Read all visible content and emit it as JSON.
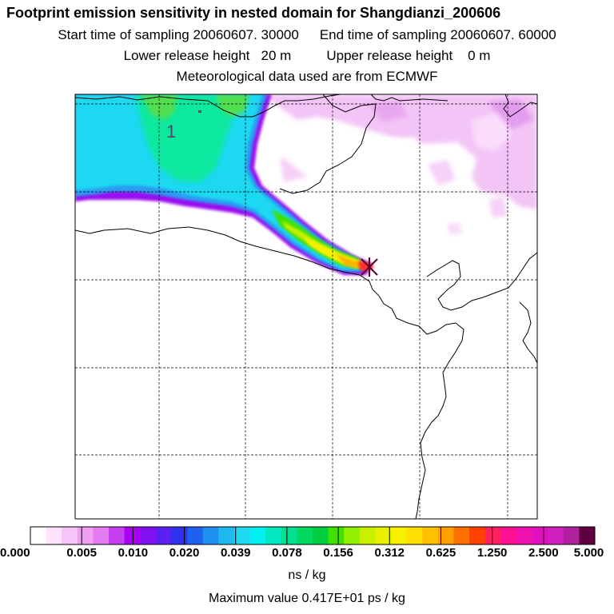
{
  "header": {
    "title": "Footprint emission sensitivity in nested domain for Shangdianzi_200606",
    "start_label": "Start time of sampling 20060607. 30000",
    "end_label": "End time of sampling 20060607. 60000",
    "lower_label": "Lower release height   20 m",
    "upper_label": "Upper release height    0 m",
    "met_label": "Meteorological data used are from ECMWF"
  },
  "map": {
    "point_label": "1",
    "colors": {
      "border": "#000000",
      "grid": "#000000",
      "release_marker": "#b0004a"
    }
  },
  "colorbar": {
    "tick_labels": [
      "0.000",
      "0.005",
      "0.010",
      "0.020",
      "0.039",
      "0.078",
      "0.156",
      "0.312",
      "0.625",
      "1.250",
      "2.500",
      "5.000"
    ],
    "colors": [
      "#ffffff",
      "#fbe3fb",
      "#f7c4f7",
      "#f0a0f3",
      "#e27cf0",
      "#c640f0",
      "#a800f0",
      "#8010f0",
      "#5a20f0",
      "#3030f0",
      "#2060f0",
      "#2090f0",
      "#20b8f0",
      "#20d8f0",
      "#00f0f0",
      "#00e8c0",
      "#00e090",
      "#00d860",
      "#00d040",
      "#40e000",
      "#90f000",
      "#c8f000",
      "#e8f000",
      "#f8f000",
      "#ffe000",
      "#ffc000",
      "#ffa000",
      "#ff7000",
      "#ff4000",
      "#ff2060",
      "#ff1090",
      "#f010b0",
      "#e010c0",
      "#d020c0",
      "#b020a0",
      "#600040"
    ],
    "units": "ns / kg"
  },
  "max_value_label": "Maximum value  0.417E+01 ps / kg"
}
